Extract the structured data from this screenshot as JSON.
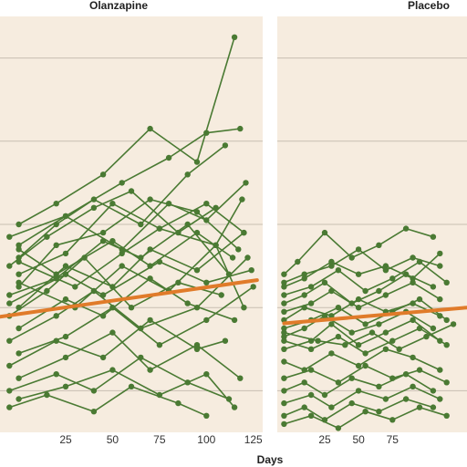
{
  "chart_data": {
    "type": "line",
    "xlabel": "Days",
    "colors": {
      "background": "#f6ecdf",
      "gridline": "#c8bfb2",
      "subject": "#4a7a33",
      "trend": "#e07b2a"
    },
    "grid": "horizontal",
    "panels": [
      {
        "title": "Olanzapine",
        "xlim": [
          -10,
          130
        ],
        "ylim": [
          0,
          100
        ],
        "xticks": [
          "25",
          "50",
          "75",
          "100",
          "125"
        ],
        "yticks": [
          10,
          30,
          50,
          70,
          90
        ],
        "trend": {
          "x": [
            -10,
            127
          ],
          "y": [
            27.8,
            36.6
          ]
        },
        "series": [
          {
            "x": [
              0,
              20,
              45,
              70,
              95,
              115
            ],
            "y": [
              50,
              55,
              62,
              73,
              65,
              95
            ]
          },
          {
            "x": [
              0,
              25,
              55,
              80,
              100,
              118
            ],
            "y": [
              45,
              52,
              60,
              66,
              72,
              73
            ]
          },
          {
            "x": [
              0,
              20,
              40,
              65,
              90,
              110
            ],
            "y": [
              42,
              50,
              56,
              50,
              62,
              69
            ]
          },
          {
            "x": [
              -5,
              15,
              40,
              60,
              85,
              105
            ],
            "y": [
              40,
              47,
              54,
              58,
              48,
              54
            ]
          },
          {
            "x": [
              0,
              25,
              50,
              75,
              100,
              120
            ],
            "y": [
              38,
              43,
              55,
              49,
              55,
              48
            ]
          },
          {
            "x": [
              0,
              20,
              45,
              70,
              95,
              117
            ],
            "y": [
              35,
              45,
              48,
              56,
              53,
              44
            ]
          },
          {
            "x": [
              -5,
              20,
              45,
              65,
              90,
              112
            ],
            "y": [
              33,
              37,
              46,
              42,
              50,
              38
            ]
          },
          {
            "x": [
              0,
              25,
              50,
              70,
              95,
              120
            ],
            "y": [
              30,
              40,
              35,
              44,
              39,
              48
            ]
          },
          {
            "x": [
              -5,
              15,
              35,
              60,
              85,
              108
            ],
            "y": [
              28,
              34,
              42,
              30,
              36,
              33
            ]
          },
          {
            "x": [
              0,
              25,
              45,
              70,
              90,
              115
            ],
            "y": [
              25,
              32,
              28,
              37,
              31,
              27
            ]
          },
          {
            "x": [
              -5,
              20,
              40,
              65,
              95,
              122
            ],
            "y": [
              22,
              28,
              34,
              25,
              30,
              42
            ]
          },
          {
            "x": [
              0,
              25,
              50,
              75,
              100,
              125
            ],
            "y": [
              19,
              23,
              30,
              21,
              27,
              35
            ]
          },
          {
            "x": [
              -5,
              20,
              45,
              70,
              95,
              110
            ],
            "y": [
              16,
              22,
              18,
              27,
              20,
              22
            ]
          },
          {
            "x": [
              0,
              25,
              50,
              70,
              95,
              118
            ],
            "y": [
              13,
              18,
              24,
              15,
              21,
              13
            ]
          },
          {
            "x": [
              -5,
              20,
              40,
              65,
              90,
              112
            ],
            "y": [
              10,
              14,
              10,
              18,
              12,
              8
            ]
          },
          {
            "x": [
              0,
              25,
              50,
              75,
              100,
              115
            ],
            "y": [
              8,
              11,
              15,
              9,
              14,
              6
            ]
          },
          {
            "x": [
              -5,
              15,
              40,
              60,
              85,
              100
            ],
            "y": [
              6,
              9,
              5,
              11,
              7,
              4
            ]
          },
          {
            "x": [
              0,
              30,
              55,
              80,
              105,
              120
            ],
            "y": [
              36,
              30,
              40,
              34,
              45,
              30
            ]
          },
          {
            "x": [
              -5,
              25,
              45,
              75,
              100,
              124
            ],
            "y": [
              31,
              38,
              33,
              41,
              36,
              39
            ]
          },
          {
            "x": [
              0,
              20,
              50,
              70,
              95,
              114
            ],
            "y": [
              44,
              38,
              46,
              40,
              48,
              42
            ]
          },
          {
            "x": [
              -5,
              25,
              55,
              80,
              100,
              121
            ],
            "y": [
              47,
              52,
              44,
              55,
              51,
              60
            ]
          },
          {
            "x": [
              0,
              30,
              55,
              75,
              105,
              119
            ],
            "y": [
              41,
              35,
              43,
              49,
              45,
              56
            ]
          }
        ]
      },
      {
        "title": "Placebo",
        "xlim": [
          -10,
          130
        ],
        "ylim": [
          0,
          100
        ],
        "xticks": [
          "25",
          "50",
          "75"
        ],
        "yticks": [
          10,
          30,
          50,
          70,
          90
        ],
        "trend": {
          "x": [
            -5,
            130
          ],
          "y": [
            26.2,
            30.0
          ]
        },
        "series": [
          {
            "x": [
              -5,
              5,
              25,
              45,
              65,
              85,
              105
            ],
            "y": [
              38,
              41,
              48,
              42,
              45,
              49,
              47
            ]
          },
          {
            "x": [
              -5,
              10,
              30,
              50,
              70,
              90,
              110
            ],
            "y": [
              36,
              38,
              40,
              44,
              39,
              42,
              40
            ]
          },
          {
            "x": [
              -5,
              15,
              35,
              55,
              75,
              95,
              115
            ],
            "y": [
              33,
              35,
              39,
              34,
              37,
              41,
              36
            ]
          },
          {
            "x": [
              -5,
              10,
              25,
              45,
              65,
              85,
              105
            ],
            "y": [
              31,
              33,
              36,
              31,
              34,
              38,
              35
            ]
          },
          {
            "x": [
              -5,
              15,
              30,
              50,
              70,
              90,
              110
            ],
            "y": [
              29,
              31,
              34,
              30,
              33,
              36,
              32
            ]
          },
          {
            "x": [
              -5,
              10,
              30,
              50,
              70,
              90,
              110
            ],
            "y": [
              27,
              30,
              28,
              32,
              29,
              31,
              28
            ]
          },
          {
            "x": [
              -5,
              15,
              35,
              55,
              75,
              95,
              115
            ],
            "y": [
              25,
              27,
              30,
              26,
              29,
              32,
              27
            ]
          },
          {
            "x": [
              -5,
              10,
              25,
              45,
              65,
              85,
              105
            ],
            "y": [
              23,
              25,
              28,
              24,
              26,
              29,
              25
            ]
          },
          {
            "x": [
              -5,
              15,
              30,
              50,
              70,
              90,
              110
            ],
            "y": [
              20,
              22,
              26,
              21,
              24,
              27,
              22
            ]
          },
          {
            "x": [
              -5,
              10,
              30,
              50,
              70,
              90,
              110
            ],
            "y": [
              17,
              15,
              19,
              16,
              20,
              18,
              15
            ]
          },
          {
            "x": [
              -5,
              15,
              35,
              55,
              75,
              95,
              115
            ],
            "y": [
              13,
              15,
              12,
              16,
              13,
              15,
              12
            ]
          },
          {
            "x": [
              -5,
              10,
              25,
              45,
              65,
              85,
              105
            ],
            "y": [
              10,
              12,
              9,
              13,
              11,
              14,
              10
            ]
          },
          {
            "x": [
              -5,
              15,
              30,
              50,
              70,
              90,
              110
            ],
            "y": [
              7,
              9,
              6,
              10,
              8,
              11,
              8
            ]
          },
          {
            "x": [
              -5,
              10,
              25,
              45,
              65,
              85,
              105
            ],
            "y": [
              4,
              6,
              3,
              7,
              5,
              8,
              6
            ]
          },
          {
            "x": [
              -5,
              15,
              35,
              55,
              75,
              95,
              115
            ],
            "y": [
              2,
              4,
              1,
              5,
              3,
              6,
              4
            ]
          },
          {
            "x": [
              -5,
              10,
              30,
              50,
              70,
              90,
              110
            ],
            "y": [
              35,
              37,
              41,
              38,
              40,
              37,
              43
            ]
          },
          {
            "x": [
              -5,
              15,
              35,
              55,
              75,
              95,
              115
            ],
            "y": [
              22,
              20,
              23,
              19,
              22,
              25,
              21
            ]
          },
          {
            "x": [
              -5,
              20,
              40,
              60,
              80,
              100,
              120
            ],
            "y": [
              24,
              22,
              21,
              24,
              20,
              23,
              26
            ]
          }
        ]
      }
    ]
  }
}
